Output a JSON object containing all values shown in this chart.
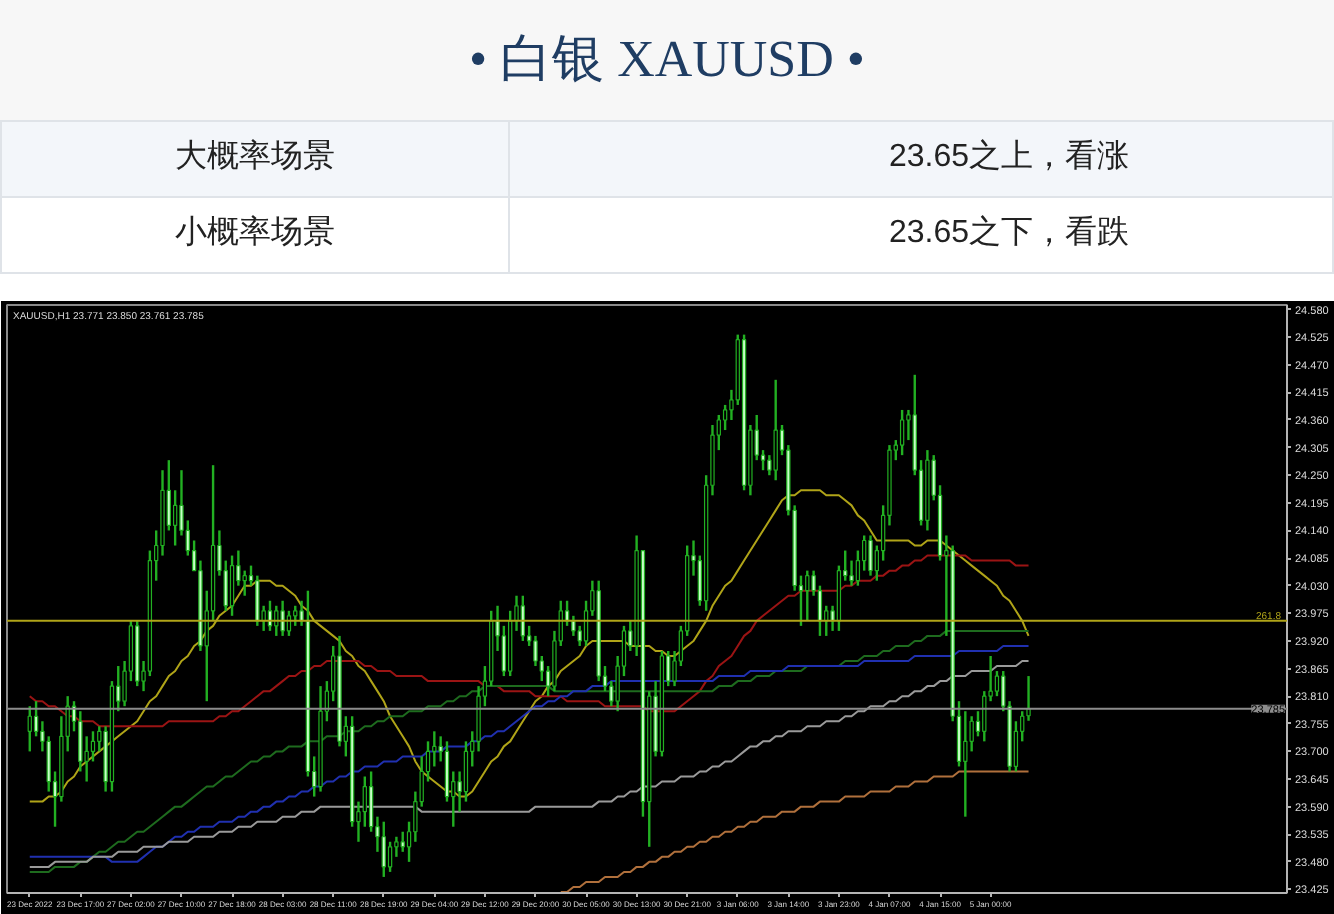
{
  "chart_data": {
    "type": "candlestick",
    "title": "• 白银 XAUUSD •",
    "annotations": [
      "大概率场景",
      "23.65之上，看涨",
      "小概率场景",
      "23.65之下，看跌",
      "XAUUSD,H1 23.771 23.850 23.761 23.785",
      {
        "text": "261.8",
        "y": 23.96
      }
    ],
    "categories": [
      "23 Dec 2022",
      null,
      null,
      null,
      null,
      null,
      null,
      null,
      "23 Dec 17:00",
      null,
      null,
      null,
      null,
      null,
      null,
      null,
      "27 Dec 02:00",
      null,
      null,
      null,
      null,
      null,
      null,
      null,
      "27 Dec 10:00",
      null,
      null,
      null,
      null,
      null,
      null,
      null,
      "27 Dec 18:00",
      null,
      null,
      null,
      null,
      null,
      null,
      null,
      "28 Dec 03:00",
      null,
      null,
      null,
      null,
      null,
      null,
      null,
      "28 Dec 11:00",
      null,
      null,
      null,
      null,
      null,
      null,
      null,
      "28 Dec 19:00",
      null,
      null,
      null,
      null,
      null,
      null,
      null,
      "29 Dec 04:00",
      null,
      null,
      null,
      null,
      null,
      null,
      null,
      "29 Dec 12:00",
      null,
      null,
      null,
      null,
      null,
      null,
      null,
      "29 Dec 20:00",
      null,
      null,
      null,
      null,
      null,
      null,
      null,
      "30 Dec 05:00",
      null,
      null,
      null,
      null,
      null,
      null,
      null,
      "30 Dec 13:00",
      null,
      null,
      null,
      null,
      null,
      null,
      null,
      "30 Dec 21:00",
      null,
      null,
      null,
      null,
      null,
      null,
      null,
      "3 Jan 06:00",
      null,
      null,
      null,
      null,
      null,
      null,
      null,
      "3 Jan 14:00",
      null,
      null,
      null,
      null,
      null,
      null,
      null,
      "3 Jan 23:00",
      null,
      null,
      null,
      null,
      null,
      null,
      null,
      "4 Jan 07:00",
      null,
      null,
      null,
      null,
      null,
      null,
      null,
      "4 Jan 15:00",
      null,
      null,
      null,
      null,
      null,
      null,
      null,
      "5 Jan 00:00",
      null,
      null,
      null,
      null,
      null,
      null
    ],
    "ohlc": [
      [
        23.74,
        23.79,
        23.7,
        23.77
      ],
      [
        23.77,
        23.8,
        23.73,
        23.74
      ],
      [
        23.74,
        23.76,
        23.7,
        23.72
      ],
      [
        23.72,
        23.73,
        23.62,
        23.64
      ],
      [
        23.64,
        23.66,
        23.55,
        23.61
      ],
      [
        23.61,
        23.77,
        23.6,
        23.73
      ],
      [
        23.73,
        23.81,
        23.7,
        23.79
      ],
      [
        23.79,
        23.8,
        23.74,
        23.76
      ],
      [
        23.76,
        23.78,
        23.66,
        23.68
      ],
      [
        23.68,
        23.73,
        23.64,
        23.7
      ],
      [
        23.7,
        23.74,
        23.68,
        23.72
      ],
      [
        23.72,
        23.75,
        23.7,
        23.74
      ],
      [
        23.74,
        23.75,
        23.62,
        23.64
      ],
      [
        23.64,
        23.84,
        23.62,
        23.83
      ],
      [
        23.83,
        23.87,
        23.78,
        23.8
      ],
      [
        23.8,
        23.88,
        23.79,
        23.86
      ],
      [
        23.86,
        23.96,
        23.84,
        23.95
      ],
      [
        23.95,
        23.96,
        23.83,
        23.84
      ],
      [
        23.84,
        23.88,
        23.82,
        23.86
      ],
      [
        23.86,
        24.1,
        23.85,
        24.08
      ],
      [
        24.08,
        24.14,
        24.04,
        24.11
      ],
      [
        24.11,
        24.26,
        24.09,
        24.22
      ],
      [
        24.22,
        24.28,
        24.14,
        24.15
      ],
      [
        24.15,
        24.22,
        24.11,
        24.19
      ],
      [
        24.19,
        24.26,
        24.13,
        24.14
      ],
      [
        24.14,
        24.16,
        24.09,
        24.1
      ],
      [
        24.1,
        24.12,
        24.06,
        24.06
      ],
      [
        24.06,
        24.08,
        23.9,
        23.91
      ],
      [
        23.91,
        24.02,
        23.8,
        23.98
      ],
      [
        23.98,
        24.27,
        23.96,
        24.11
      ],
      [
        24.11,
        24.14,
        24.05,
        24.06
      ],
      [
        24.06,
        24.08,
        23.98,
        23.99
      ],
      [
        23.99,
        24.09,
        23.97,
        24.07
      ],
      [
        24.07,
        24.1,
        24.03,
        24.04
      ],
      [
        24.04,
        24.06,
        24.01,
        24.05
      ],
      [
        24.05,
        24.07,
        24.03,
        24.04
      ],
      [
        24.04,
        24.05,
        23.95,
        23.96
      ],
      [
        23.96,
        23.99,
        23.94,
        23.98
      ],
      [
        23.98,
        24.0,
        23.94,
        23.95
      ],
      [
        23.95,
        23.99,
        23.93,
        23.98
      ],
      [
        23.98,
        24.0,
        23.93,
        23.94
      ],
      [
        23.94,
        23.98,
        23.93,
        23.97
      ],
      [
        23.97,
        23.99,
        23.95,
        23.98
      ],
      [
        23.98,
        24.0,
        23.95,
        23.96
      ],
      [
        23.96,
        24.02,
        23.65,
        23.66
      ],
      [
        23.66,
        23.69,
        23.61,
        23.63
      ],
      [
        23.63,
        23.83,
        23.62,
        23.78
      ],
      [
        23.78,
        23.84,
        23.76,
        23.82
      ],
      [
        23.82,
        23.91,
        23.8,
        23.89
      ],
      [
        23.89,
        23.93,
        23.71,
        23.72
      ],
      [
        23.72,
        23.77,
        23.69,
        23.75
      ],
      [
        23.75,
        23.77,
        23.55,
        23.56
      ],
      [
        23.56,
        23.6,
        23.52,
        23.58
      ],
      [
        23.58,
        23.65,
        23.55,
        23.63
      ],
      [
        23.63,
        23.66,
        23.54,
        23.55
      ],
      [
        23.55,
        23.57,
        23.5,
        23.53
      ],
      [
        23.53,
        23.56,
        23.45,
        23.47
      ],
      [
        23.47,
        23.52,
        23.46,
        23.51
      ],
      [
        23.51,
        23.53,
        23.49,
        23.52
      ],
      [
        23.52,
        23.54,
        23.5,
        23.51
      ],
      [
        23.51,
        23.56,
        23.48,
        23.54
      ],
      [
        23.54,
        23.62,
        23.52,
        23.6
      ],
      [
        23.6,
        23.69,
        23.59,
        23.66
      ],
      [
        23.66,
        23.72,
        23.64,
        23.7
      ],
      [
        23.7,
        23.74,
        23.67,
        23.71
      ],
      [
        23.71,
        23.73,
        23.68,
        23.7
      ],
      [
        23.7,
        23.72,
        23.6,
        23.61
      ],
      [
        23.61,
        23.66,
        23.55,
        23.64
      ],
      [
        23.64,
        23.66,
        23.58,
        23.62
      ],
      [
        23.62,
        23.72,
        23.6,
        23.7
      ],
      [
        23.7,
        23.74,
        23.67,
        23.72
      ],
      [
        23.72,
        23.83,
        23.7,
        23.81
      ],
      [
        23.81,
        23.87,
        23.79,
        23.84
      ],
      [
        23.84,
        23.98,
        23.83,
        23.96
      ],
      [
        23.96,
        23.99,
        23.9,
        23.93
      ],
      [
        23.93,
        23.95,
        23.85,
        23.86
      ],
      [
        23.86,
        23.98,
        23.85,
        23.96
      ],
      [
        23.96,
        24.01,
        23.94,
        23.99
      ],
      [
        23.99,
        24.01,
        23.92,
        23.93
      ],
      [
        23.93,
        23.95,
        23.91,
        23.92
      ],
      [
        23.92,
        23.93,
        23.87,
        23.88
      ],
      [
        23.88,
        23.89,
        23.84,
        23.86
      ],
      [
        23.86,
        23.87,
        23.81,
        23.83
      ],
      [
        23.83,
        23.94,
        23.82,
        23.92
      ],
      [
        23.92,
        24.0,
        23.91,
        23.98
      ],
      [
        23.98,
        24.0,
        23.95,
        23.96
      ],
      [
        23.96,
        23.97,
        23.93,
        23.94
      ],
      [
        23.94,
        23.95,
        23.91,
        23.92
      ],
      [
        23.92,
        24.0,
        23.91,
        23.98
      ],
      [
        23.98,
        24.04,
        23.97,
        24.02
      ],
      [
        24.02,
        24.04,
        23.84,
        23.85
      ],
      [
        23.85,
        23.87,
        23.82,
        23.83
      ],
      [
        23.83,
        23.84,
        23.79,
        23.8
      ],
      [
        23.8,
        23.89,
        23.78,
        23.87
      ],
      [
        23.87,
        23.95,
        23.85,
        23.94
      ],
      [
        23.94,
        23.96,
        23.9,
        23.91
      ],
      [
        23.91,
        24.13,
        23.89,
        24.1
      ],
      [
        24.1,
        24.1,
        23.57,
        23.6
      ],
      [
        23.6,
        23.82,
        23.51,
        23.81
      ],
      [
        23.81,
        23.84,
        23.69,
        23.7
      ],
      [
        23.7,
        23.9,
        23.69,
        23.89
      ],
      [
        23.89,
        23.9,
        23.83,
        23.84
      ],
      [
        23.84,
        23.9,
        23.83,
        23.88
      ],
      [
        23.88,
        23.95,
        23.87,
        23.94
      ],
      [
        23.94,
        24.11,
        23.93,
        24.09
      ],
      [
        24.09,
        24.12,
        24.05,
        24.08
      ],
      [
        24.08,
        24.09,
        23.99,
        24.0
      ],
      [
        24.0,
        24.25,
        23.98,
        24.23
      ],
      [
        24.23,
        24.35,
        24.21,
        24.33
      ],
      [
        24.33,
        24.37,
        24.3,
        24.36
      ],
      [
        24.36,
        24.39,
        24.34,
        24.38
      ],
      [
        24.38,
        24.42,
        24.36,
        24.4
      ],
      [
        24.4,
        24.53,
        24.39,
        24.52
      ],
      [
        24.52,
        24.53,
        24.22,
        24.23
      ],
      [
        24.23,
        24.35,
        24.21,
        24.34
      ],
      [
        24.34,
        24.37,
        24.28,
        24.29
      ],
      [
        24.29,
        24.3,
        24.26,
        24.28
      ],
      [
        24.28,
        24.29,
        24.25,
        24.26
      ],
      [
        24.26,
        24.44,
        24.24,
        24.34
      ],
      [
        24.34,
        24.35,
        24.29,
        24.3
      ],
      [
        24.3,
        24.31,
        24.17,
        24.18
      ],
      [
        24.18,
        24.19,
        24.02,
        24.03
      ],
      [
        24.03,
        24.05,
        23.95,
        24.02
      ],
      [
        24.02,
        24.06,
        23.96,
        24.05
      ],
      [
        24.05,
        24.06,
        24.01,
        24.02
      ],
      [
        24.02,
        24.03,
        23.93,
        23.96
      ],
      [
        23.96,
        23.99,
        23.93,
        23.98
      ],
      [
        23.98,
        23.99,
        23.94,
        23.96
      ],
      [
        23.96,
        24.07,
        23.94,
        24.06
      ],
      [
        24.06,
        24.1,
        24.04,
        24.05
      ],
      [
        24.05,
        24.08,
        24.03,
        24.04
      ],
      [
        24.04,
        24.1,
        24.03,
        24.08
      ],
      [
        24.08,
        24.13,
        24.06,
        24.12
      ],
      [
        24.12,
        24.13,
        24.05,
        24.06
      ],
      [
        24.06,
        24.11,
        24.04,
        24.1
      ],
      [
        24.1,
        24.19,
        24.08,
        24.17
      ],
      [
        24.17,
        24.31,
        24.15,
        24.3
      ],
      [
        24.3,
        24.32,
        24.28,
        24.31
      ],
      [
        24.31,
        24.38,
        24.29,
        24.36
      ],
      [
        24.36,
        24.38,
        24.32,
        24.37
      ],
      [
        24.37,
        24.45,
        24.25,
        24.26
      ],
      [
        24.26,
        24.28,
        24.15,
        24.16
      ],
      [
        24.16,
        24.3,
        24.14,
        24.28
      ],
      [
        24.28,
        24.29,
        24.2,
        24.21
      ],
      [
        24.21,
        24.23,
        24.08,
        24.09
      ],
      [
        24.09,
        24.13,
        23.93,
        24.1
      ],
      [
        24.1,
        24.11,
        23.76,
        23.77
      ],
      [
        23.77,
        23.8,
        23.67,
        23.68
      ],
      [
        23.68,
        23.78,
        23.57,
        23.72
      ],
      [
        23.72,
        23.77,
        23.7,
        23.76
      ],
      [
        23.76,
        23.78,
        23.73,
        23.74
      ],
      [
        23.74,
        23.82,
        23.72,
        23.81
      ],
      [
        23.81,
        23.89,
        23.8,
        23.82
      ],
      [
        23.82,
        23.86,
        23.81,
        23.85
      ],
      [
        23.85,
        23.86,
        23.78,
        23.79
      ],
      [
        23.79,
        23.8,
        23.66,
        23.67
      ],
      [
        23.67,
        23.76,
        23.66,
        23.74
      ],
      [
        23.74,
        23.78,
        23.72,
        23.77
      ],
      [
        23.771,
        23.85,
        23.761,
        23.785
      ]
    ],
    "color": "#22b022",
    "colors": [
      "#000000",
      "#c6ffc6",
      "#c6ffc6",
      "#c6ffc6",
      "#c6ffc6",
      "#000000",
      "#000000",
      "#c6ffc6",
      "#c6ffc6",
      "#000000",
      "#000000",
      "#000000",
      "#c6ffc6",
      "#000000",
      "#c6ffc6",
      "#000000",
      "#000000",
      "#c6ffc6",
      "#000000",
      "#000000",
      "#000000",
      "#000000",
      "#c6ffc6",
      "#000000",
      "#c6ffc6",
      "#c6ffc6",
      "#c6ffc6",
      "#c6ffc6",
      "#000000",
      "#000000",
      "#c6ffc6",
      "#c6ffc6",
      "#000000",
      "#c6ffc6",
      "#000000",
      "#c6ffc6",
      "#c6ffc6",
      "#000000",
      "#c6ffc6",
      "#000000",
      "#c6ffc6",
      "#000000",
      "#000000",
      "#c6ffc6",
      "#c6ffc6",
      "#c6ffc6",
      "#000000",
      "#000000",
      "#000000",
      "#c6ffc6",
      "#000000",
      "#c6ffc6",
      "#000000",
      "#000000",
      "#c6ffc6",
      "#c6ffc6",
      "#c6ffc6",
      "#000000",
      "#000000",
      "#c6ffc6",
      "#000000",
      "#000000",
      "#000000",
      "#000000",
      "#000000",
      "#c6ffc6",
      "#c6ffc6",
      "#000000",
      "#c6ffc6",
      "#000000",
      "#000000",
      "#000000",
      "#000000",
      "#000000",
      "#c6ffc6",
      "#c6ffc6",
      "#000000",
      "#000000",
      "#c6ffc6",
      "#c6ffc6",
      "#c6ffc6",
      "#c6ffc6",
      "#c6ffc6",
      "#000000",
      "#000000",
      "#c6ffc6",
      "#c6ffc6",
      "#c6ffc6",
      "#000000",
      "#000000",
      "#c6ffc6",
      "#c6ffc6",
      "#c6ffc6",
      "#000000",
      "#000000",
      "#c6ffc6",
      "#000000",
      "#c6ffc6",
      "#000000",
      "#c6ffc6",
      "#000000",
      "#c6ffc6",
      "#000000",
      "#000000",
      "#000000",
      "#c6ffc6",
      "#c6ffc6",
      "#000000",
      "#000000",
      "#000000",
      "#000000",
      "#000000",
      "#000000",
      "#c6ffc6",
      "#000000",
      "#c6ffc6",
      "#c6ffc6",
      "#c6ffc6",
      "#000000",
      "#c6ffc6",
      "#c6ffc6",
      "#c6ffc6",
      "#c6ffc6",
      "#000000",
      "#c6ffc6",
      "#c6ffc6",
      "#000000",
      "#c6ffc6",
      "#000000",
      "#c6ffc6",
      "#c6ffc6",
      "#000000",
      "#000000",
      "#c6ffc6",
      "#000000",
      "#000000",
      "#000000",
      "#000000",
      "#000000",
      "#000000",
      "#c6ffc6",
      "#c6ffc6",
      "#000000",
      "#c6ffc6",
      "#c6ffc6",
      "#000000",
      "#c6ffc6",
      "#c6ffc6",
      "#000000",
      "#000000",
      "#c6ffc6",
      "#000000",
      "#000000",
      "#000000",
      "#c6ffc6",
      "#c6ffc6",
      "#000000",
      "#000000",
      "#000000"
    ],
    "series": [
      {
        "type": "line",
        "color": "#b0a418",
        "values": [
          23.6,
          23.6,
          23.6,
          23.61,
          23.61,
          23.62,
          23.64,
          23.65,
          23.67,
          23.68,
          23.69,
          23.7,
          23.71,
          23.72,
          23.73,
          23.74,
          23.75,
          23.76,
          23.78,
          23.8,
          23.81,
          23.83,
          23.85,
          23.86,
          23.88,
          23.89,
          23.91,
          23.92,
          23.94,
          23.95,
          23.97,
          23.98,
          23.99,
          24.01,
          24.03,
          24.03,
          24.04,
          24.04,
          24.04,
          24.03,
          24.03,
          24.02,
          24.01,
          23.99,
          23.98,
          23.96,
          23.95,
          23.94,
          23.93,
          23.92,
          23.9,
          23.89,
          23.87,
          23.86,
          23.84,
          23.82,
          23.8,
          23.77,
          23.75,
          23.73,
          23.71,
          23.68,
          23.66,
          23.65,
          23.64,
          23.63,
          23.62,
          23.62,
          23.61,
          23.61,
          23.62,
          23.64,
          23.66,
          23.68,
          23.69,
          23.71,
          23.72,
          23.74,
          23.76,
          23.78,
          23.8,
          23.81,
          23.83,
          23.84,
          23.86,
          23.87,
          23.88,
          23.89,
          23.91,
          23.92,
          23.92,
          23.92,
          23.92,
          23.92,
          23.92,
          23.91,
          23.91,
          23.91,
          23.91,
          23.9,
          23.9,
          23.89,
          23.89,
          23.9,
          23.91,
          23.92,
          23.94,
          23.96,
          23.99,
          24.01,
          24.03,
          24.04,
          24.06,
          24.08,
          24.1,
          24.12,
          24.14,
          24.16,
          24.18,
          24.2,
          24.21,
          24.21,
          24.22,
          24.22,
          24.22,
          24.22,
          24.21,
          24.21,
          24.21,
          24.2,
          24.19,
          24.17,
          24.16,
          24.14,
          24.12,
          24.12,
          24.12,
          24.12,
          24.12,
          24.12,
          24.11,
          24.11,
          24.12,
          24.12,
          24.12,
          24.11,
          24.1,
          24.09,
          24.08,
          24.07,
          24.06,
          24.05,
          24.04,
          24.03,
          24.01,
          24.0,
          23.98,
          23.96,
          23.93
        ]
      },
      {
        "type": "line",
        "color": "#9b1414",
        "values": [
          23.81,
          23.8,
          23.8,
          23.79,
          23.79,
          23.78,
          23.77,
          23.77,
          23.76,
          23.76,
          23.76,
          23.75,
          23.75,
          23.75,
          23.75,
          23.75,
          23.75,
          23.75,
          23.75,
          23.75,
          23.75,
          23.75,
          23.76,
          23.76,
          23.76,
          23.76,
          23.76,
          23.76,
          23.76,
          23.76,
          23.77,
          23.77,
          23.78,
          23.78,
          23.79,
          23.8,
          23.81,
          23.82,
          23.82,
          23.83,
          23.84,
          23.85,
          23.85,
          23.86,
          23.86,
          23.87,
          23.87,
          23.88,
          23.88,
          23.88,
          23.88,
          23.88,
          23.88,
          23.87,
          23.87,
          23.86,
          23.86,
          23.86,
          23.85,
          23.85,
          23.85,
          23.85,
          23.85,
          23.84,
          23.84,
          23.84,
          23.84,
          23.84,
          23.84,
          23.84,
          23.84,
          23.84,
          23.83,
          23.83,
          23.83,
          23.82,
          23.82,
          23.82,
          23.82,
          23.82,
          23.81,
          23.81,
          23.81,
          23.81,
          23.81,
          23.8,
          23.8,
          23.8,
          23.8,
          23.8,
          23.8,
          23.79,
          23.79,
          23.79,
          23.79,
          23.79,
          23.79,
          23.79,
          23.78,
          23.78,
          23.78,
          23.78,
          23.78,
          23.79,
          23.8,
          23.81,
          23.82,
          23.84,
          23.85,
          23.87,
          23.88,
          23.89,
          23.91,
          23.93,
          23.94,
          23.96,
          23.97,
          23.98,
          23.99,
          24.0,
          24.01,
          24.01,
          24.02,
          24.02,
          24.02,
          24.02,
          24.02,
          24.02,
          24.02,
          24.03,
          24.03,
          24.04,
          24.04,
          24.04,
          24.05,
          24.05,
          24.06,
          24.06,
          24.07,
          24.07,
          24.08,
          24.08,
          24.09,
          24.09,
          24.09,
          24.09,
          24.09,
          24.09,
          24.09,
          24.08,
          24.08,
          24.08,
          24.08,
          24.08,
          24.08,
          24.08,
          24.07,
          24.07,
          24.07
        ]
      },
      {
        "type": "line",
        "color": "#1e6b1e",
        "values": [
          23.46,
          23.46,
          23.46,
          23.46,
          23.47,
          23.47,
          23.47,
          23.47,
          23.48,
          23.48,
          23.49,
          23.5,
          23.5,
          23.51,
          23.52,
          23.52,
          23.53,
          23.54,
          23.54,
          23.55,
          23.56,
          23.57,
          23.58,
          23.59,
          23.59,
          23.6,
          23.61,
          23.62,
          23.63,
          23.63,
          23.64,
          23.65,
          23.65,
          23.66,
          23.67,
          23.68,
          23.68,
          23.69,
          23.69,
          23.7,
          23.7,
          23.71,
          23.71,
          23.71,
          23.72,
          23.72,
          23.72,
          23.73,
          23.73,
          23.73,
          23.74,
          23.74,
          23.74,
          23.75,
          23.75,
          23.76,
          23.76,
          23.77,
          23.77,
          23.77,
          23.78,
          23.78,
          23.78,
          23.79,
          23.79,
          23.79,
          23.8,
          23.8,
          23.81,
          23.81,
          23.82,
          23.82,
          23.83,
          23.83,
          23.83,
          23.83,
          23.83,
          23.83,
          23.83,
          23.83,
          23.83,
          23.83,
          23.83,
          23.82,
          23.82,
          23.82,
          23.82,
          23.82,
          23.82,
          23.82,
          23.82,
          23.82,
          23.82,
          23.82,
          23.82,
          23.82,
          23.82,
          23.82,
          23.82,
          23.82,
          23.82,
          23.82,
          23.82,
          23.82,
          23.82,
          23.82,
          23.82,
          23.82,
          23.82,
          23.83,
          23.83,
          23.83,
          23.84,
          23.84,
          23.84,
          23.85,
          23.85,
          23.85,
          23.86,
          23.86,
          23.86,
          23.86,
          23.86,
          23.87,
          23.87,
          23.87,
          23.87,
          23.87,
          23.87,
          23.88,
          23.88,
          23.88,
          23.89,
          23.89,
          23.89,
          23.9,
          23.9,
          23.91,
          23.91,
          23.91,
          23.92,
          23.92,
          23.93,
          23.93,
          23.93,
          23.94,
          23.94,
          23.94,
          23.94,
          23.94,
          23.94,
          23.94,
          23.94,
          23.94,
          23.94,
          23.94,
          23.94,
          23.94,
          23.94
        ]
      },
      {
        "type": "line",
        "color": "#2030b0",
        "values": [
          23.49,
          23.49,
          23.49,
          23.49,
          23.49,
          23.49,
          23.49,
          23.49,
          23.49,
          23.49,
          23.49,
          23.49,
          23.49,
          23.48,
          23.48,
          23.48,
          23.48,
          23.48,
          23.49,
          23.5,
          23.51,
          23.51,
          23.52,
          23.53,
          23.53,
          23.54,
          23.54,
          23.55,
          23.55,
          23.55,
          23.56,
          23.56,
          23.56,
          23.57,
          23.57,
          23.58,
          23.58,
          23.59,
          23.59,
          23.6,
          23.6,
          23.61,
          23.61,
          23.62,
          23.62,
          23.63,
          23.63,
          23.64,
          23.64,
          23.65,
          23.65,
          23.66,
          23.66,
          23.67,
          23.67,
          23.67,
          23.68,
          23.68,
          23.68,
          23.69,
          23.69,
          23.69,
          23.69,
          23.7,
          23.7,
          23.7,
          23.71,
          23.71,
          23.71,
          23.71,
          23.72,
          23.72,
          23.73,
          23.73,
          23.74,
          23.74,
          23.75,
          23.76,
          23.77,
          23.78,
          23.79,
          23.79,
          23.8,
          23.8,
          23.81,
          23.81,
          23.82,
          23.82,
          23.82,
          23.83,
          23.83,
          23.83,
          23.84,
          23.84,
          23.84,
          23.84,
          23.84,
          23.84,
          23.84,
          23.84,
          23.84,
          23.84,
          23.84,
          23.84,
          23.84,
          23.84,
          23.84,
          23.84,
          23.84,
          23.85,
          23.85,
          23.85,
          23.85,
          23.85,
          23.86,
          23.86,
          23.86,
          23.86,
          23.86,
          23.86,
          23.87,
          23.87,
          23.87,
          23.87,
          23.87,
          23.87,
          23.87,
          23.87,
          23.87,
          23.87,
          23.87,
          23.87,
          23.88,
          23.88,
          23.88,
          23.88,
          23.88,
          23.88,
          23.88,
          23.88,
          23.89,
          23.89,
          23.89,
          23.89,
          23.89,
          23.89,
          23.89,
          23.9,
          23.9,
          23.9,
          23.9,
          23.9,
          23.9,
          23.9,
          23.91,
          23.91,
          23.91,
          23.91,
          23.91
        ]
      },
      {
        "type": "line",
        "color": "#9a9a9a",
        "values": [
          23.47,
          23.47,
          23.47,
          23.47,
          23.48,
          23.48,
          23.48,
          23.48,
          23.48,
          23.48,
          23.49,
          23.49,
          23.49,
          23.49,
          23.5,
          23.5,
          23.5,
          23.5,
          23.51,
          23.51,
          23.51,
          23.51,
          23.52,
          23.52,
          23.52,
          23.52,
          23.53,
          23.53,
          23.53,
          23.53,
          23.54,
          23.54,
          23.54,
          23.55,
          23.55,
          23.55,
          23.56,
          23.56,
          23.56,
          23.56,
          23.57,
          23.57,
          23.57,
          23.58,
          23.58,
          23.58,
          23.59,
          23.59,
          23.59,
          23.59,
          23.59,
          23.59,
          23.59,
          23.59,
          23.59,
          23.59,
          23.59,
          23.59,
          23.59,
          23.59,
          23.59,
          23.59,
          23.58,
          23.58,
          23.58,
          23.58,
          23.58,
          23.58,
          23.58,
          23.58,
          23.58,
          23.58,
          23.58,
          23.58,
          23.58,
          23.58,
          23.58,
          23.58,
          23.58,
          23.58,
          23.59,
          23.59,
          23.59,
          23.59,
          23.59,
          23.59,
          23.59,
          23.59,
          23.59,
          23.59,
          23.6,
          23.6,
          23.6,
          23.61,
          23.61,
          23.62,
          23.62,
          23.63,
          23.63,
          23.63,
          23.64,
          23.64,
          23.64,
          23.65,
          23.65,
          23.65,
          23.66,
          23.66,
          23.67,
          23.67,
          23.68,
          23.68,
          23.69,
          23.7,
          23.71,
          23.71,
          23.72,
          23.72,
          23.73,
          23.73,
          23.74,
          23.74,
          23.74,
          23.75,
          23.75,
          23.75,
          23.76,
          23.76,
          23.76,
          23.77,
          23.77,
          23.78,
          23.78,
          23.79,
          23.79,
          23.79,
          23.8,
          23.8,
          23.81,
          23.81,
          23.82,
          23.82,
          23.83,
          23.83,
          23.84,
          23.84,
          23.85,
          23.85,
          23.85,
          23.86,
          23.86,
          23.86,
          23.86,
          23.87,
          23.87,
          23.87,
          23.87,
          23.88,
          23.88
        ]
      },
      {
        "type": "line",
        "color": "#b0703c",
        "values": [
          null,
          null,
          null,
          null,
          null,
          null,
          null,
          null,
          null,
          null,
          null,
          null,
          null,
          null,
          null,
          null,
          null,
          null,
          null,
          null,
          null,
          null,
          null,
          null,
          null,
          null,
          null,
          null,
          null,
          null,
          null,
          null,
          null,
          null,
          null,
          null,
          null,
          null,
          null,
          null,
          null,
          null,
          null,
          null,
          null,
          null,
          null,
          null,
          null,
          null,
          null,
          null,
          null,
          null,
          null,
          null,
          null,
          null,
          null,
          null,
          null,
          null,
          null,
          null,
          null,
          null,
          null,
          null,
          null,
          null,
          null,
          null,
          null,
          null,
          null,
          null,
          null,
          null,
          null,
          null,
          null,
          null,
          null,
          null,
          23.42,
          23.42,
          23.43,
          23.43,
          23.44,
          23.44,
          23.44,
          23.45,
          23.45,
          23.45,
          23.46,
          23.46,
          23.47,
          23.47,
          23.48,
          23.48,
          23.49,
          23.49,
          23.5,
          23.5,
          23.51,
          23.51,
          23.52,
          23.52,
          23.53,
          23.53,
          23.54,
          23.54,
          23.55,
          23.55,
          23.56,
          23.56,
          23.57,
          23.57,
          23.57,
          23.58,
          23.58,
          23.58,
          23.59,
          23.59,
          23.59,
          23.6,
          23.6,
          23.6,
          23.6,
          23.61,
          23.61,
          23.61,
          23.61,
          23.62,
          23.62,
          23.62,
          23.62,
          23.63,
          23.63,
          23.63,
          23.64,
          23.64,
          23.64,
          23.65,
          23.65,
          23.65,
          23.65,
          23.66,
          23.66,
          23.66,
          23.66,
          23.66,
          23.66,
          23.66,
          23.66,
          23.66,
          23.66,
          23.66,
          23.66
        ]
      }
    ],
    "ylim": [
      23.418,
      24.589
    ],
    "yticks": [
      {
        "value": 24.58,
        "label": "24.580"
      },
      24.525,
      {
        "value": 24.47,
        "label": "24.470"
      },
      24.415,
      {
        "value": 24.36,
        "label": "24.360"
      },
      24.305,
      {
        "value": 24.25,
        "label": "24.250"
      },
      24.195,
      {
        "value": 24.14,
        "label": "24.140"
      },
      24.085,
      {
        "value": 24.03,
        "label": "24.030"
      },
      23.975,
      {
        "value": 23.92,
        "label": "23.920"
      },
      23.865,
      {
        "value": 23.81,
        "label": "23.810"
      },
      23.755,
      {
        "value": 23.7,
        "label": "23.700"
      },
      23.645,
      {
        "value": 23.59,
        "label": "23.590"
      },
      23.535,
      {
        "value": 23.48,
        "label": "23.480"
      },
      23.425
    ],
    "ref_lines": [
      {
        "axis": "y",
        "value": 23.96,
        "color": "#b0a418"
      },
      {
        "axis": "y",
        "value": 23.785,
        "label": "23.785",
        "color": "#8c8c8c"
      }
    ]
  }
}
